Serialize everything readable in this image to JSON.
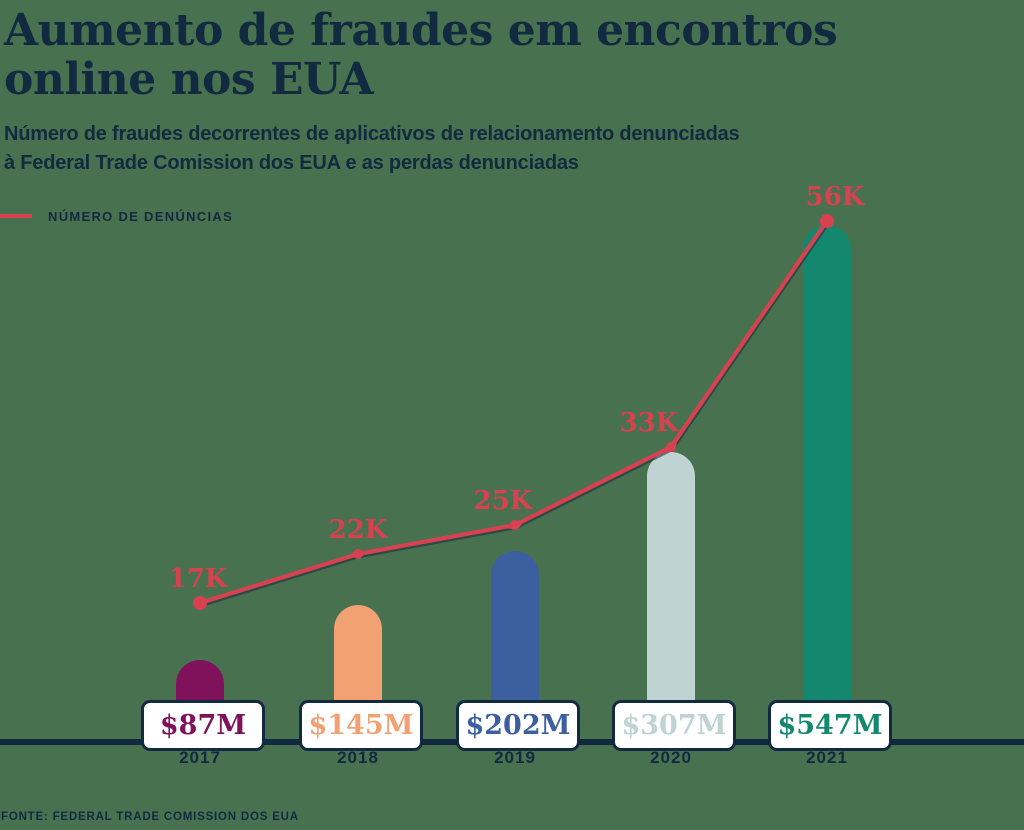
{
  "header": {
    "title_line1": "Aumento de fraudes em encontros",
    "title_line2": "online nos EUA",
    "subtitle_line1": "Número de fraudes decorrentes de aplicativos de relacionamento denunciadas",
    "subtitle_line2": "à Federal Trade Comission dos EUA e as perdas denunciadas"
  },
  "legend": {
    "label": "NÚMERO DE DENÚNCIAS"
  },
  "footer": {
    "source": "FONTE: FEDERAL TRADE COMISSION DOS EUA"
  },
  "colors": {
    "background": "#47714f",
    "navy": "#122a40",
    "red": "#d8414f",
    "box_fill": "#ffffff"
  },
  "chart_data": {
    "type": "combo-line-and-rounded-bars",
    "title": "Aumento de fraudes em encontros online nos EUA",
    "categories": [
      "2017",
      "2018",
      "2019",
      "2020",
      "2021"
    ],
    "series": [
      {
        "name": "Número de denúncias",
        "type": "line",
        "unit": "thousands of complaints",
        "values": [
          17,
          22,
          25,
          33,
          56
        ],
        "labels": [
          "17K",
          "22K",
          "25K",
          "33K",
          "56K"
        ],
        "color": "#d8414f"
      },
      {
        "name": "Perdas denunciadas",
        "type": "bar",
        "unit": "USD millions",
        "values": [
          87,
          145,
          202,
          307,
          547
        ],
        "labels": [
          "$87M",
          "$145M",
          "$202M",
          "$307M",
          "$547M"
        ],
        "colors": [
          "#7f125b",
          "#f2a173",
          "#3b5f9f",
          "#bfd3d3",
          "#13886f"
        ]
      }
    ],
    "legend_position": "top-left",
    "grid": false,
    "baseline_axis": true,
    "source": "FONTE: FEDERAL TRADE COMISSION DOS EUA"
  }
}
